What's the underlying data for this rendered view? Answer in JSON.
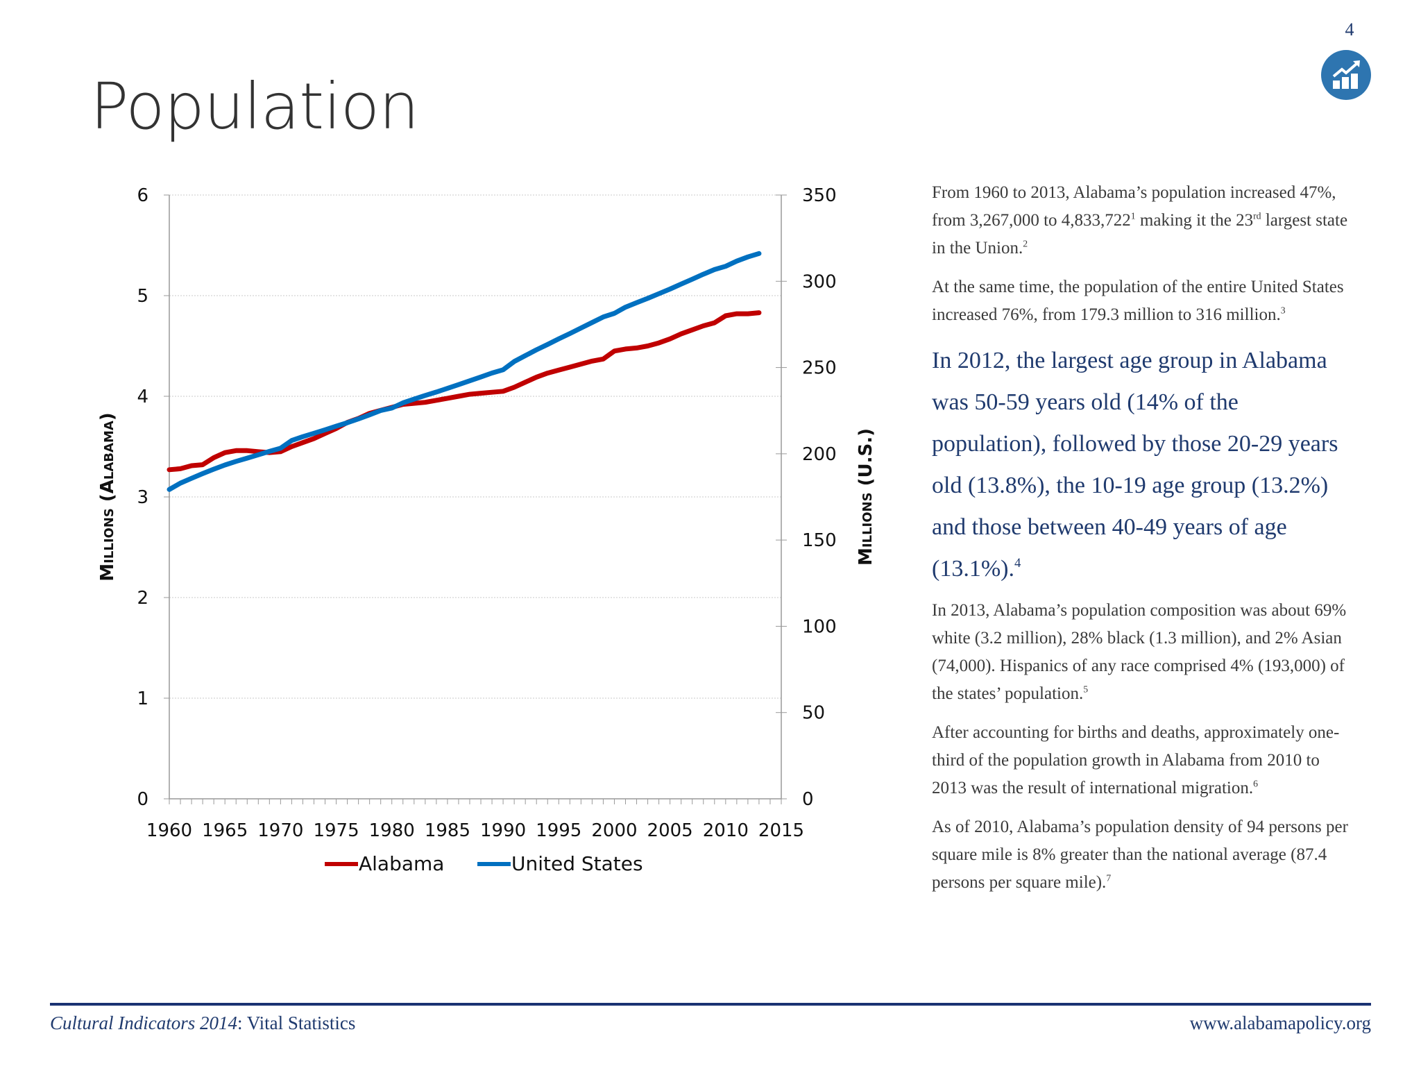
{
  "page_number": "4",
  "badge_icon": "chart-growth-icon",
  "title": "Population",
  "chart_data": {
    "type": "line",
    "x": [
      1960,
      1961,
      1962,
      1963,
      1964,
      1965,
      1966,
      1967,
      1968,
      1969,
      1970,
      1971,
      1972,
      1973,
      1974,
      1975,
      1976,
      1977,
      1978,
      1979,
      1980,
      1981,
      1982,
      1983,
      1984,
      1985,
      1986,
      1987,
      1988,
      1989,
      1990,
      1991,
      1992,
      1993,
      1994,
      1995,
      1996,
      1997,
      1998,
      1999,
      2000,
      2001,
      2002,
      2003,
      2004,
      2005,
      2006,
      2007,
      2008,
      2009,
      2010,
      2011,
      2012,
      2013
    ],
    "series": [
      {
        "name": "Alabama",
        "axis": "left",
        "color": "#c00000",
        "values": [
          3.27,
          3.28,
          3.31,
          3.32,
          3.39,
          3.44,
          3.46,
          3.46,
          3.45,
          3.44,
          3.45,
          3.5,
          3.54,
          3.58,
          3.63,
          3.68,
          3.74,
          3.78,
          3.83,
          3.86,
          3.89,
          3.92,
          3.93,
          3.94,
          3.96,
          3.98,
          4.0,
          4.02,
          4.03,
          4.04,
          4.05,
          4.09,
          4.14,
          4.19,
          4.23,
          4.26,
          4.29,
          4.32,
          4.35,
          4.37,
          4.45,
          4.47,
          4.48,
          4.5,
          4.53,
          4.57,
          4.62,
          4.66,
          4.7,
          4.73,
          4.8,
          4.82,
          4.82,
          4.83
        ]
      },
      {
        "name": "United States",
        "axis": "right",
        "color": "#0070c0",
        "values": [
          179.3,
          183.0,
          185.8,
          188.5,
          191.1,
          193.5,
          195.6,
          197.5,
          199.4,
          201.4,
          203.2,
          207.7,
          209.9,
          211.9,
          213.9,
          216.0,
          218.0,
          220.2,
          222.6,
          225.1,
          226.5,
          229.5,
          231.7,
          233.8,
          235.8,
          237.9,
          240.1,
          242.3,
          244.5,
          246.8,
          248.7,
          253.5,
          256.9,
          260.3,
          263.4,
          266.6,
          269.7,
          272.9,
          276.1,
          279.3,
          281.4,
          285.0,
          287.6,
          290.1,
          292.8,
          295.5,
          298.4,
          301.2,
          304.1,
          306.8,
          308.7,
          311.7,
          314.1,
          316.1
        ]
      }
    ],
    "xlim": [
      1960,
      2015
    ],
    "x_ticks": [
      "1960",
      "1965",
      "1970",
      "1975",
      "1980",
      "1985",
      "1990",
      "1995",
      "2000",
      "2005",
      "2010",
      "2015"
    ],
    "ylim_left": [
      0,
      6
    ],
    "y_ticks_left": [
      "0",
      "1",
      "2",
      "3",
      "4",
      "5",
      "6"
    ],
    "ylim_right": [
      0,
      350
    ],
    "y_ticks_right": [
      "0",
      "50",
      "100",
      "150",
      "200",
      "250",
      "300",
      "350"
    ],
    "ylabel_left": "Millions (Alabama)",
    "ylabel_right": "Millions (U.S.)",
    "grid": "horizontal dotted",
    "legend": "bottom"
  },
  "text": {
    "paragraphs": [
      {
        "style": "normal",
        "segments": [
          {
            "t": "From 1960 to 2013, Alabama’s population increased 47%, from 3,267,000 to 4,833,722"
          },
          {
            "t": "1",
            "sup": true
          },
          {
            "t": " making it the 23"
          },
          {
            "t": "rd",
            "sup": true
          },
          {
            "t": " largest state in the Union."
          },
          {
            "t": "2",
            "sup": true
          }
        ]
      },
      {
        "style": "normal",
        "segments": [
          {
            "t": "At the same time, the population of the entire United States increased 76%, from 179.3 million to 316 million."
          },
          {
            "t": "3",
            "sup": true
          }
        ]
      },
      {
        "style": "highlight",
        "segments": [
          {
            "t": "In 2012, the largest age group in Alabama was 50-59 years old (14% of the population), followed by those 20-29 years old (13.8%), the 10-19 age group (13.2%) and those between 40-49 years of age (13.1%)."
          },
          {
            "t": "4",
            "sup": true
          }
        ]
      },
      {
        "style": "normal",
        "segments": [
          {
            "t": "In 2013, Alabama’s population composition was about 69% white (3.2 million), 28% black (1.3 million), and 2% Asian (74,000).  Hispanics of any race comprised 4% (193,000) of the states’ population."
          },
          {
            "t": "5",
            "sup": true
          }
        ]
      },
      {
        "style": "normal",
        "segments": [
          {
            "t": "After accounting for births and deaths, approximately one-third of the population growth in Alabama from 2010 to 2013 was the result of international migration."
          },
          {
            "t": "6",
            "sup": true
          }
        ]
      },
      {
        "style": "normal",
        "segments": [
          {
            "t": "As of 2010, Alabama’s population density of 94 persons per square mile is 8% greater than the national average (87.4 persons per square mile)."
          },
          {
            "t": "7",
            "sup": true
          }
        ]
      }
    ]
  },
  "footer": {
    "title_italic": "Cultural Indicators 2014",
    "title_rest": ": Vital Statistics",
    "url": "www.alabamapolicy.org",
    "rule_color": "#1a3272"
  }
}
